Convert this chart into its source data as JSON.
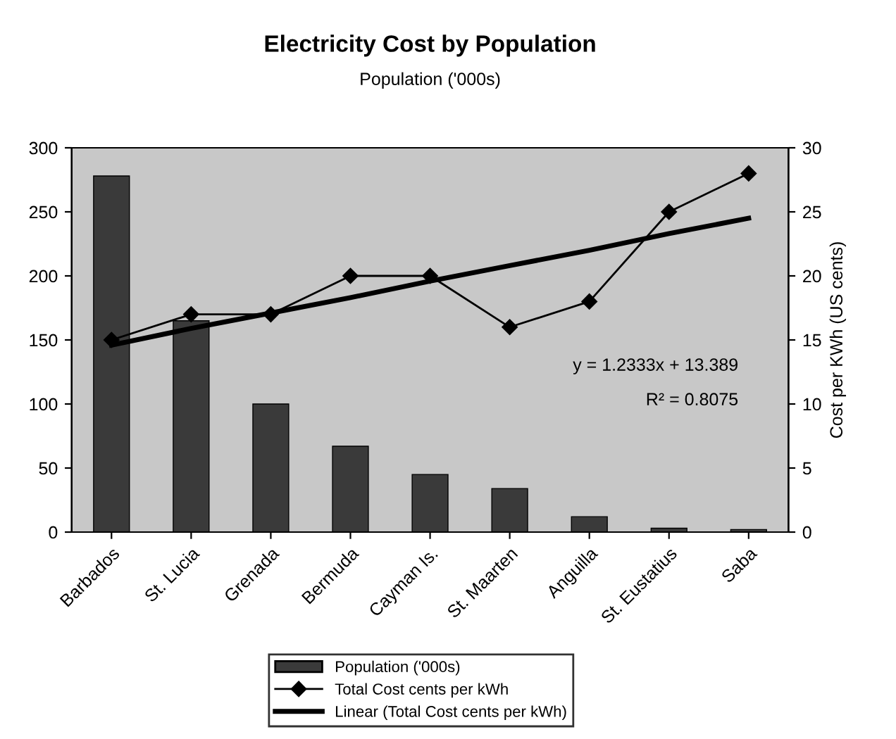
{
  "chart_data": {
    "type": "bar",
    "title": "Electricity Cost by Population",
    "subtitle": "Population ('000s)",
    "y2label": "Cost per KWh (US cents)",
    "categories": [
      "Barbados",
      "St. Lucia",
      "Grenada",
      "Bermuda",
      "Cayman Is.",
      "St. Maarten",
      "Anguilla",
      "St. Eustatius",
      "Saba"
    ],
    "series": [
      {
        "name": "Population ('000s)",
        "color": "#3a3a3a",
        "values": [
          278,
          165,
          100,
          67,
          45,
          34,
          12,
          3,
          2
        ]
      },
      {
        "name": "Total Cost cents per kWh",
        "type": "line",
        "axis": "y2",
        "color": "#000000",
        "marker": "diamond",
        "values": [
          15,
          17,
          17,
          20,
          20,
          16,
          18,
          25,
          28
        ]
      },
      {
        "name": "Linear (Total Cost cents per kWh)",
        "type": "line",
        "axis": "y2",
        "color": "#000000",
        "marker": "none",
        "values": [
          14.6,
          15.9,
          17.1,
          18.3,
          19.6,
          20.8,
          22.0,
          23.3,
          24.5
        ]
      }
    ],
    "ylim": [
      0,
      300
    ],
    "yticks": [
      0,
      50,
      100,
      150,
      200,
      250,
      300
    ],
    "y2lim": [
      0,
      30
    ],
    "y2ticks": [
      0,
      5,
      10,
      15,
      20,
      25,
      30
    ],
    "annotations": [
      "y = 1.2333x + 13.389",
      "R² = 0.8075"
    ],
    "legend": "bottom",
    "grid": false
  }
}
